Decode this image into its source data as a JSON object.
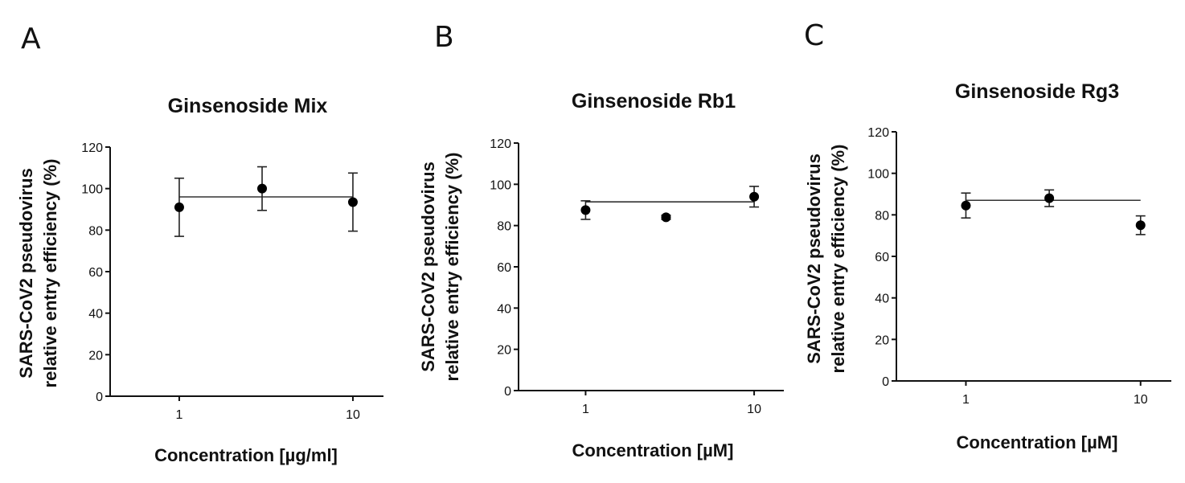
{
  "panels": [
    {
      "letter": "A",
      "title": "Ginsenoside Mix",
      "xlabel": "Concentration [µg/ml]",
      "ylabel_line1": "SARS-CoV2 pseudovirus",
      "ylabel_line2": "relative entry efficiency (%)"
    },
    {
      "letter": "B",
      "title": "Ginsenoside Rb1",
      "xlabel": "Concentration [µM]",
      "ylabel_line1": "SARS-CoV2 pseudovirus",
      "ylabel_line2": "relative entry efficiency (%)"
    },
    {
      "letter": "C",
      "title": "Ginsenoside Rg3",
      "xlabel": "Concentration [µM]",
      "ylabel_line1": "SARS-CoV2 pseudovirus",
      "ylabel_line2": "relative entry efficiency (%)"
    }
  ],
  "chart_data": [
    {
      "type": "scatter",
      "title": "Ginsenoside Mix",
      "xlabel": "Concentration [µg/ml]",
      "ylabel": "SARS-CoV2 pseudovirus relative entry efficiency (%)",
      "xscale": "log",
      "xlim": [
        0.4,
        15
      ],
      "xticks": [
        1,
        10
      ],
      "xtick_labels": [
        "1",
        "10"
      ],
      "ylim": [
        0,
        120
      ],
      "yticks": [
        0,
        20,
        40,
        60,
        80,
        100,
        120
      ],
      "x": [
        1,
        3,
        10
      ],
      "y": [
        91,
        100,
        93.5
      ],
      "yerr": [
        14,
        10.5,
        14
      ],
      "fit_line": {
        "x_start": 1,
        "x_end": 10,
        "y": 96
      },
      "grid": false
    },
    {
      "type": "scatter",
      "title": "Ginsenoside Rb1",
      "xlabel": "Concentration [µM]",
      "ylabel": "SARS-CoV2 pseudovirus relative entry efficiency (%)",
      "xscale": "log",
      "xlim": [
        0.4,
        15
      ],
      "xticks": [
        1,
        10
      ],
      "xtick_labels": [
        "1",
        "10"
      ],
      "ylim": [
        0,
        120
      ],
      "yticks": [
        0,
        20,
        40,
        60,
        80,
        100,
        120
      ],
      "x": [
        1,
        3,
        10
      ],
      "y": [
        87.5,
        84,
        94
      ],
      "yerr": [
        4.5,
        1,
        5
      ],
      "fit_line": {
        "x_start": 1,
        "x_end": 10,
        "y": 91.5
      },
      "grid": false
    },
    {
      "type": "scatter",
      "title": "Ginsenoside Rg3",
      "xlabel": "Concentration [µM]",
      "ylabel": "SARS-CoV2 pseudovirus relative entry efficiency (%)",
      "xscale": "log",
      "xlim": [
        0.4,
        15
      ],
      "xticks": [
        1,
        10
      ],
      "xtick_labels": [
        "1",
        "10"
      ],
      "ylim": [
        0,
        120
      ],
      "yticks": [
        0,
        20,
        40,
        60,
        80,
        100,
        120
      ],
      "x": [
        1,
        3,
        10
      ],
      "y": [
        84.5,
        88,
        75
      ],
      "yerr": [
        6,
        4,
        4.5
      ],
      "fit_line": {
        "x_start": 1,
        "x_end": 10,
        "y": 87
      },
      "grid": false
    }
  ]
}
